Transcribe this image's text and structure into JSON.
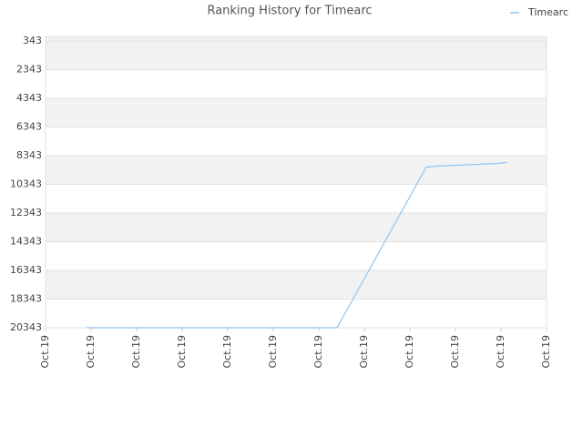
{
  "chart_data": {
    "type": "line",
    "title": "Ranking History for Timearc",
    "inverted": true,
    "xlim": [
      0,
      11
    ],
    "xticks": [
      {
        "value": 0,
        "label": "Oct.19"
      },
      {
        "value": 1,
        "label": "Oct.19"
      },
      {
        "value": 2,
        "label": "Oct.19"
      },
      {
        "value": 3,
        "label": "Oct.19"
      },
      {
        "value": 4,
        "label": "Oct.19"
      },
      {
        "value": 5,
        "label": "Oct.19"
      },
      {
        "value": 6,
        "label": "Oct.19"
      },
      {
        "value": 7,
        "label": "Oct.19"
      },
      {
        "value": 8,
        "label": "Oct.19"
      },
      {
        "value": 9,
        "label": "Oct.19"
      },
      {
        "value": 10,
        "label": "Oct.19"
      },
      {
        "value": 11,
        "label": "Oct.19"
      }
    ],
    "ylim": [
      26,
      20343
    ],
    "yticks": [
      343,
      2343,
      4343,
      6343,
      8343,
      10343,
      12343,
      14343,
      16343,
      18343,
      20343
    ],
    "band_colors": [
      "#f2f2f2",
      "#ffffff"
    ],
    "legend": "top-right",
    "series": [
      {
        "name": "Timearc",
        "color": "#90c4f0",
        "x": [
          0.9,
          6.4,
          8.36,
          8.6,
          9.0,
          9.5,
          9.9,
          10.14
        ],
        "values": [
          20343,
          20343,
          9137,
          9073,
          9010,
          8946,
          8883,
          8819
        ]
      }
    ]
  }
}
